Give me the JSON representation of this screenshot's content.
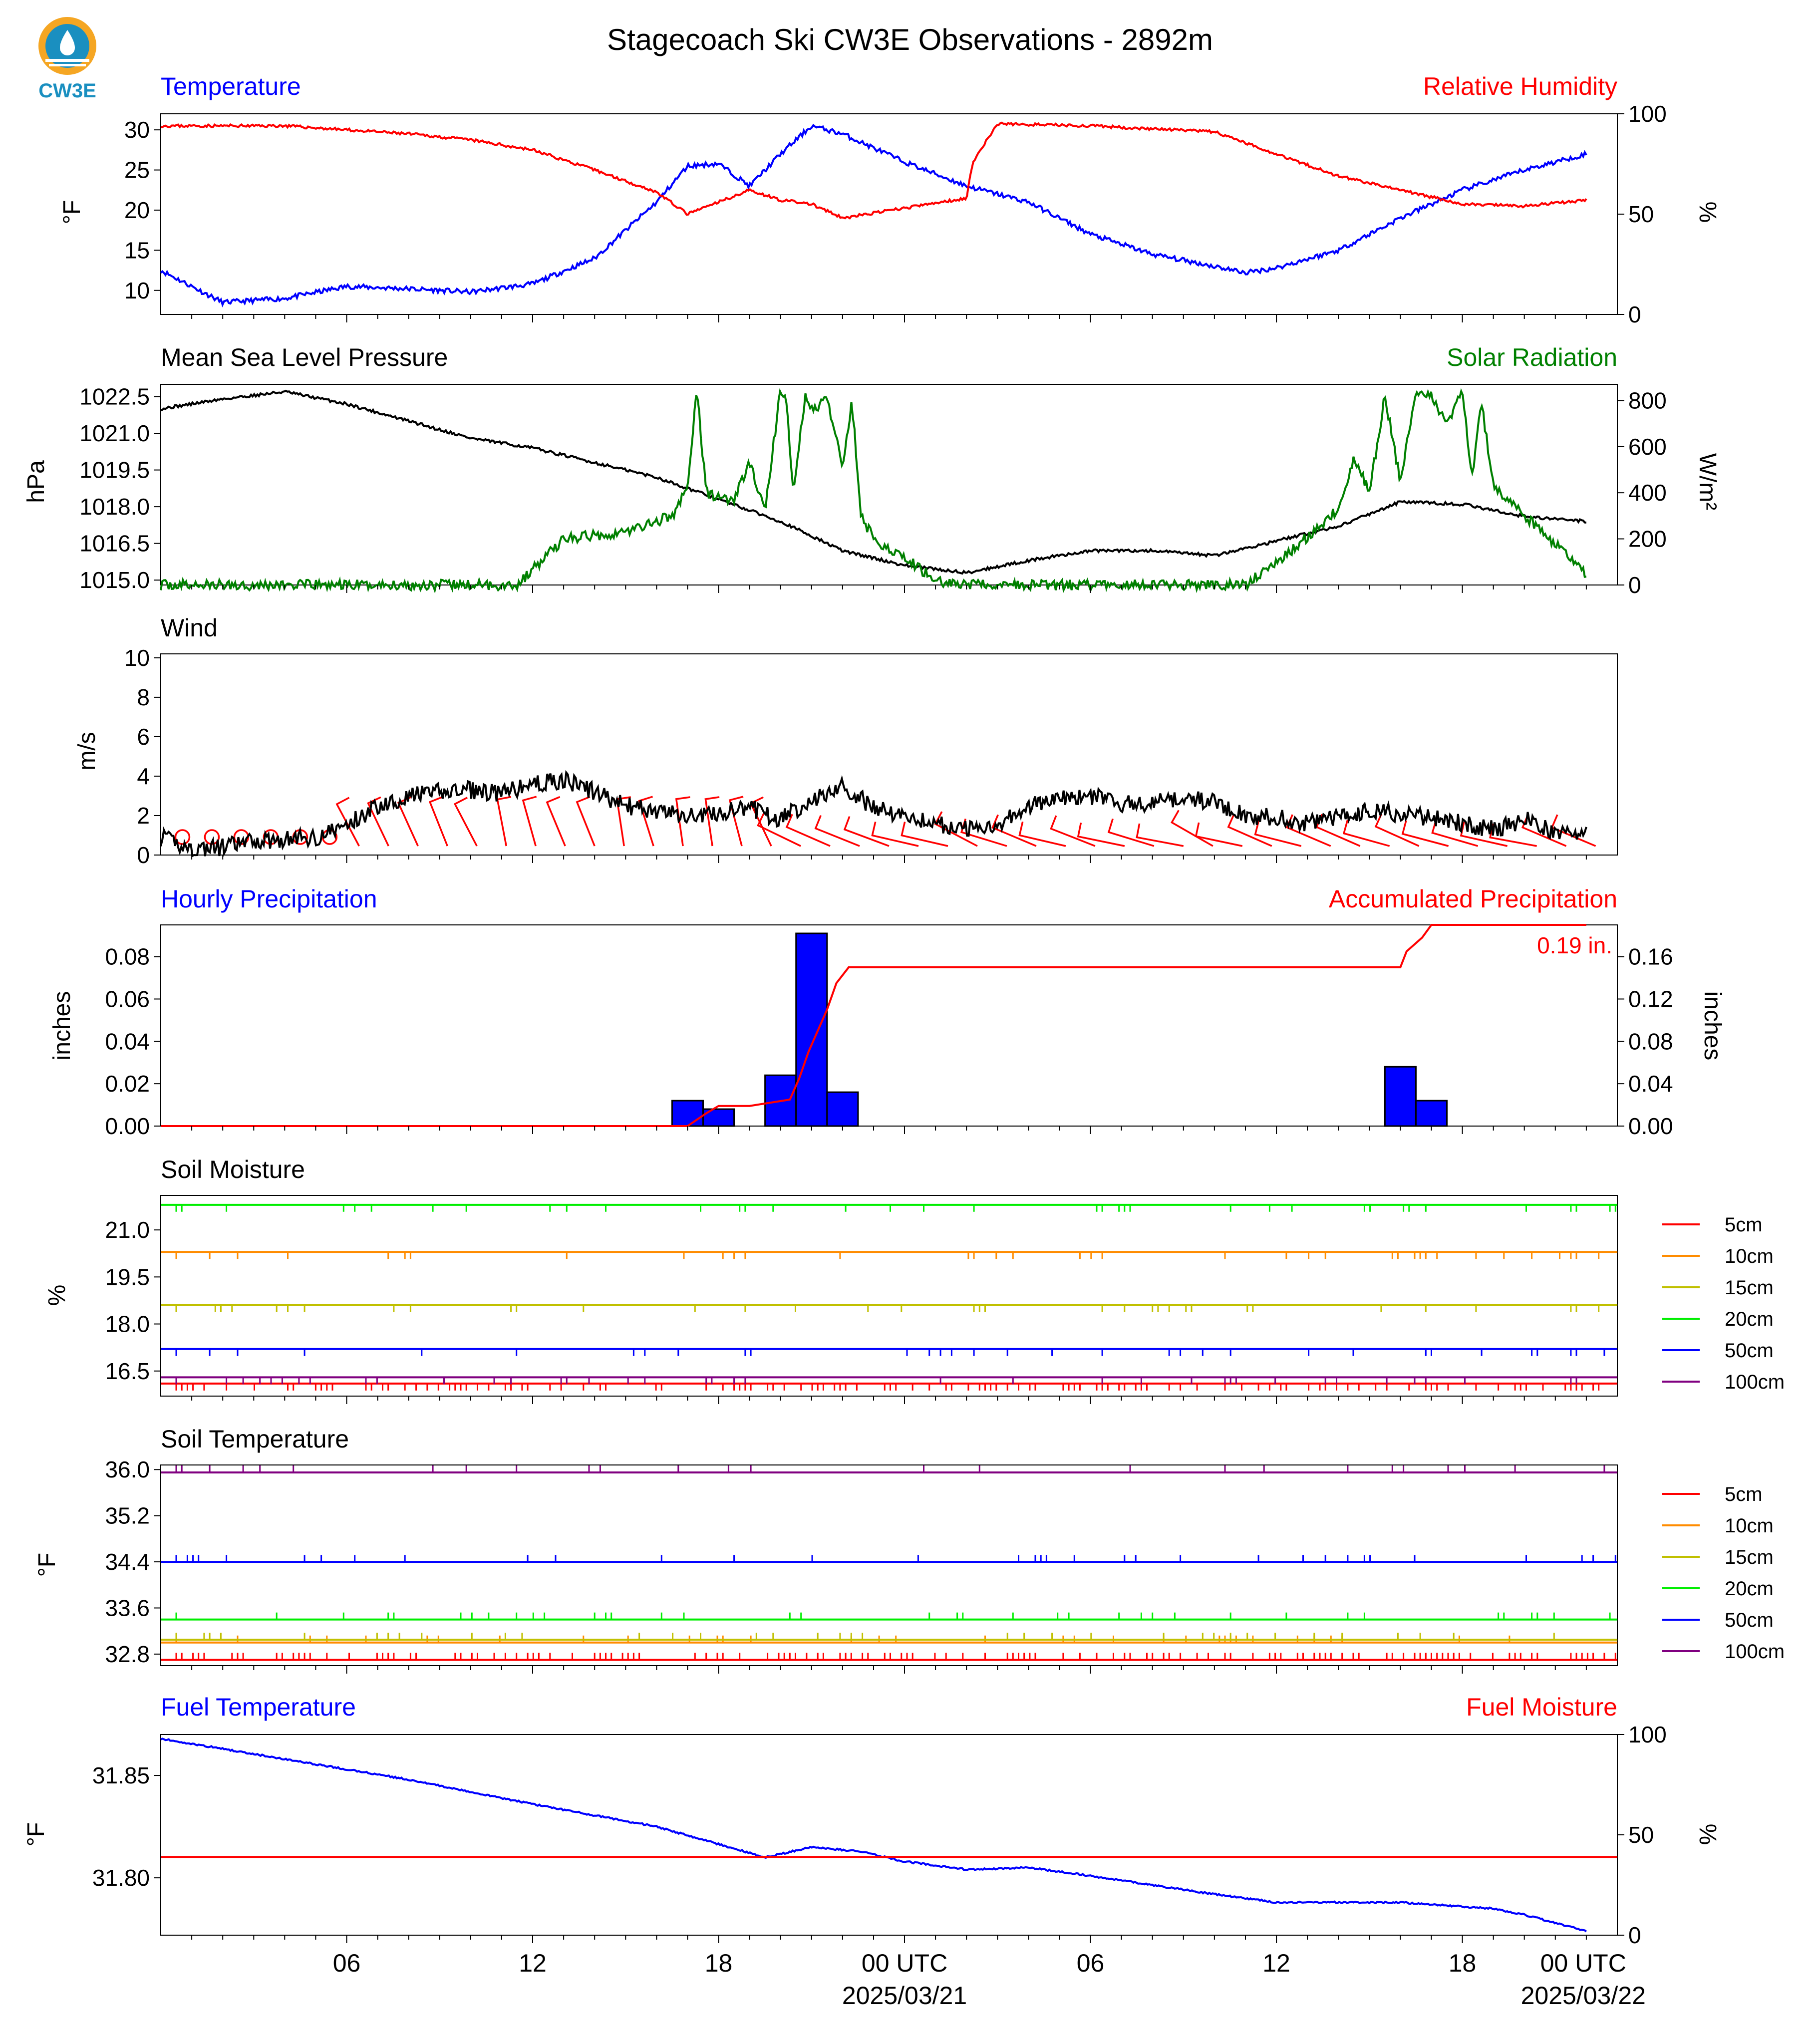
{
  "title": "Stagecoach Ski CW3E Observations - 2892m",
  "logo": {
    "text": "CW3E",
    "icon": "cw3e-water-drop-logo"
  },
  "x_axis": {
    "ticks": [
      "06",
      "12",
      "18",
      "00 UTC",
      "06",
      "12",
      "18",
      "00 UTC"
    ],
    "dates": [
      "2025/03/21",
      "2025/03/22"
    ]
  },
  "colors": {
    "blue": "#0000ff",
    "red": "#ff0000",
    "green": "#008000",
    "black": "#000000",
    "orange": "#ff8c00",
    "yellowgreen": "#c0c000",
    "lime": "#00ee00",
    "purple": "#800080"
  },
  "panels": {
    "temp_rh": {
      "left_title": "Temperature",
      "right_title": "Relative Humidity",
      "ylabel_left": "°F",
      "ylabel_right": "%",
      "yticks_left": [
        "10",
        "15",
        "20",
        "25",
        "30"
      ],
      "yticks_right": [
        "0",
        "50",
        "100"
      ]
    },
    "pressure_solar": {
      "left_title": "Mean Sea Level Pressure",
      "right_title": "Solar Radiation",
      "ylabel_left": "hPa",
      "ylabel_right": "W/m²",
      "yticks_left": [
        "1015.0",
        "1016.5",
        "1018.0",
        "1019.5",
        "1021.0",
        "1022.5"
      ],
      "yticks_right": [
        "0",
        "200",
        "400",
        "600",
        "800"
      ]
    },
    "wind": {
      "left_title": "Wind",
      "ylabel_left": "m/s",
      "yticks_left": [
        "0",
        "2",
        "4",
        "6",
        "8",
        "10"
      ]
    },
    "precip": {
      "left_title": "Hourly Precipitation",
      "right_title": "Accumulated Precipitation",
      "ylabel_left": "inches",
      "ylabel_right": "inches",
      "yticks_left": [
        "0.00",
        "0.02",
        "0.04",
        "0.06",
        "0.08"
      ],
      "yticks_right": [
        "0.00",
        "0.04",
        "0.08",
        "0.12",
        "0.16"
      ],
      "total_label": "0.19 in."
    },
    "soil_moisture": {
      "left_title": "Soil Moisture",
      "ylabel_left": "%",
      "yticks_left": [
        "16.5",
        "18.0",
        "19.5",
        "21.0"
      ],
      "legend": [
        "5cm",
        "10cm",
        "15cm",
        "20cm",
        "50cm",
        "100cm"
      ]
    },
    "soil_temp": {
      "left_title": "Soil Temperature",
      "ylabel_left": "°F",
      "yticks_left": [
        "32.8",
        "33.6",
        "34.4",
        "35.2",
        "36.0"
      ],
      "legend": [
        "5cm",
        "10cm",
        "15cm",
        "20cm",
        "50cm",
        "100cm"
      ]
    },
    "fuel": {
      "left_title": "Fuel Temperature",
      "right_title": "Fuel Moisture",
      "ylabel_left": "°F",
      "ylabel_right": "%",
      "yticks_left": [
        "31.80",
        "31.85"
      ],
      "yticks_right": [
        "0",
        "50",
        "100"
      ]
    }
  },
  "chart_data": [
    {
      "type": "line",
      "title": "Temperature",
      "x_hours": [
        0,
        2,
        4,
        6,
        8,
        10,
        12,
        14,
        16,
        17,
        18,
        19,
        20,
        21,
        22,
        24,
        26,
        28,
        30,
        32,
        34,
        35,
        36,
        38,
        40,
        42,
        44,
        46
      ],
      "series": [
        {
          "name": "Temperature",
          "unit": "°F",
          "color": "#0000ff",
          "values": [
            12.5,
            8.5,
            9,
            10.5,
            10.2,
            9.8,
            10.8,
            14,
            21,
            25.5,
            25.8,
            23,
            27,
            30.5,
            29.5,
            26,
            23,
            21,
            17,
            14.5,
            13,
            12.2,
            12.8,
            15,
            19,
            22.5,
            25,
            27
          ]
        }
      ],
      "ylim": [
        7,
        32
      ]
    },
    {
      "type": "line",
      "title": "Relative Humidity",
      "x_hours": [
        0,
        2,
        4,
        6,
        8,
        10,
        12,
        14,
        16,
        17,
        18,
        19,
        20,
        21,
        22,
        24,
        26,
        26.2,
        27,
        30,
        34,
        36,
        38,
        40,
        42,
        44,
        46
      ],
      "series": [
        {
          "name": "Relative Humidity",
          "unit": "%",
          "color": "#ff0000",
          "values": [
            94,
            94,
            94,
            92,
            90,
            87,
            82,
            72,
            61,
            50,
            56,
            62,
            57,
            55,
            48,
            53,
            58,
            76,
            95,
            94,
            91,
            80,
            69,
            62,
            55,
            54,
            57
          ]
        }
      ],
      "ylim": [
        0,
        100
      ]
    },
    {
      "type": "line",
      "title": "Mean Sea Level Pressure",
      "x_hours": [
        0,
        2,
        4,
        6,
        8,
        10,
        12,
        14,
        16,
        18,
        20,
        22,
        24,
        26,
        28,
        30,
        32,
        34,
        36,
        38,
        40,
        42,
        44,
        46
      ],
      "series": [
        {
          "name": "Mean Sea Level Pressure",
          "unit": "hPa",
          "color": "#000000",
          "values": [
            1022.0,
            1022.4,
            1022.7,
            1022.2,
            1021.5,
            1020.8,
            1020.4,
            1019.8,
            1019.2,
            1018.3,
            1017.4,
            1016.2,
            1015.6,
            1015.3,
            1015.8,
            1016.2,
            1016.2,
            1016.0,
            1016.6,
            1017.2,
            1018.2,
            1018.1,
            1017.6,
            1017.4
          ]
        }
      ],
      "ylim": [
        1014.8,
        1023.0
      ]
    },
    {
      "type": "line",
      "title": "Solar Radiation",
      "x_hours": [
        0,
        11.5,
        13,
        15,
        16.5,
        17,
        17.3,
        17.6,
        18,
        18.5,
        19,
        19.5,
        20,
        20.2,
        20.4,
        20.8,
        21,
        21.5,
        22,
        22.3,
        22.6,
        23,
        24,
        25,
        26,
        30,
        34,
        35,
        36.5,
        38,
        38.5,
        39,
        39.5,
        40,
        40.5,
        41,
        41.5,
        42,
        42.3,
        42.6,
        43,
        44,
        45,
        46
      ],
      "series": [
        {
          "name": "Solar Radiation",
          "unit": "W/m²",
          "color": "#008000",
          "values": [
            0,
            0,
            200,
            230,
            300,
            420,
            850,
            400,
            380,
            370,
            530,
            320,
            850,
            800,
            400,
            820,
            760,
            800,
            520,
            800,
            300,
            200,
            120,
            20,
            0,
            0,
            0,
            0,
            150,
            330,
            550,
            400,
            820,
            450,
            850,
            820,
            700,
            850,
            450,
            800,
            430,
            300,
            180,
            40
          ]
        }
      ],
      "ylim": [
        0,
        870
      ]
    },
    {
      "type": "line",
      "title": "Wind",
      "x_hours": [
        0,
        1,
        2,
        3,
        4,
        5,
        6,
        7,
        8,
        9,
        10,
        11,
        12,
        13,
        14,
        15,
        16,
        17,
        18,
        19,
        20,
        21,
        22,
        23,
        24,
        25,
        26,
        27,
        28,
        29,
        30,
        31,
        32,
        33,
        34,
        35,
        36,
        37,
        38,
        39,
        40,
        41,
        42,
        43,
        44,
        45,
        46
      ],
      "series": [
        {
          "name": "Wind",
          "unit": "m/s",
          "color": "#000000",
          "values": [
            0.9,
            0.3,
            0.4,
            0.7,
            0.8,
            0.9,
            1.5,
            2.5,
            3.0,
            3.2,
            3.3,
            3.1,
            3.6,
            3.8,
            3.2,
            2.5,
            2.2,
            2.0,
            2.1,
            2.4,
            1.8,
            2.8,
            3.5,
            2.4,
            2.0,
            1.6,
            1.3,
            1.6,
            2.5,
            2.8,
            3.0,
            2.6,
            2.6,
            2.9,
            2.7,
            2.0,
            1.9,
            1.6,
            1.9,
            2.3,
            2.1,
            1.9,
            1.6,
            1.3,
            1.8,
            1.2,
            1.0
          ]
        }
      ],
      "ylim": [
        0,
        10.2
      ]
    },
    {
      "type": "bar",
      "title": "Hourly Precipitation",
      "x_hours": [
        17,
        18,
        20,
        21,
        22,
        40,
        41
      ],
      "series": [
        {
          "name": "Hourly Precipitation",
          "unit": "inches",
          "color": "#0000ff",
          "values": [
            0.012,
            0.008,
            0.024,
            0.091,
            0.016,
            0.028,
            0.012
          ]
        }
      ],
      "ylim": [
        0,
        0.095
      ]
    },
    {
      "type": "line",
      "title": "Accumulated Precipitation",
      "x_hours": [
        0,
        17,
        17.6,
        18,
        19,
        20.3,
        20.6,
        20.9,
        21.2,
        21.5,
        21.8,
        22.2,
        40,
        40.2,
        40.7,
        41,
        46
      ],
      "series": [
        {
          "name": "Accumulated Precipitation",
          "unit": "inches",
          "color": "#ff0000",
          "values": [
            0,
            0,
            0.012,
            0.019,
            0.019,
            0.025,
            0.045,
            0.07,
            0.09,
            0.11,
            0.135,
            0.15,
            0.15,
            0.165,
            0.178,
            0.19,
            0.19
          ]
        }
      ],
      "ylim": [
        0,
        0.19
      ]
    },
    {
      "type": "line",
      "title": "Soil Moisture",
      "series": [
        {
          "name": "5cm",
          "color": "#ff0000",
          "values": [
            16.1
          ]
        },
        {
          "name": "10cm",
          "color": "#ff8c00",
          "values": [
            20.3
          ]
        },
        {
          "name": "15cm",
          "color": "#c0c000",
          "values": [
            18.6
          ]
        },
        {
          "name": "20cm",
          "color": "#00ee00",
          "values": [
            21.8
          ]
        },
        {
          "name": "50cm",
          "color": "#0000ff",
          "values": [
            17.2
          ]
        },
        {
          "name": "100cm",
          "color": "#800080",
          "values": [
            16.3
          ]
        }
      ],
      "ylim": [
        15.7,
        22.1
      ]
    },
    {
      "type": "line",
      "title": "Soil Temperature",
      "series": [
        {
          "name": "5cm",
          "color": "#ff0000",
          "values": [
            32.7
          ]
        },
        {
          "name": "10cm",
          "color": "#ff8c00",
          "values": [
            33.0
          ]
        },
        {
          "name": "15cm",
          "color": "#c0c000",
          "values": [
            33.05
          ]
        },
        {
          "name": "20cm",
          "color": "#00ee00",
          "values": [
            33.4
          ]
        },
        {
          "name": "50cm",
          "color": "#0000ff",
          "values": [
            34.4
          ]
        },
        {
          "name": "100cm",
          "color": "#800080",
          "values": [
            35.95
          ]
        }
      ],
      "ylim": [
        32.6,
        36.08
      ]
    },
    {
      "type": "line",
      "title": "Fuel Temperature",
      "x_hours": [
        0,
        4,
        8,
        12,
        16,
        19.5,
        21,
        22.5,
        24,
        26,
        28,
        30,
        34,
        36,
        37,
        40,
        43,
        44,
        46
      ],
      "series": [
        {
          "name": "Fuel Temperature",
          "unit": "°F",
          "color": "#0000ff",
          "values": [
            31.868,
            31.858,
            31.848,
            31.836,
            31.825,
            31.81,
            31.815,
            31.813,
            31.808,
            31.804,
            31.805,
            31.801,
            31.792,
            31.788,
            31.788,
            31.788,
            31.785,
            31.782,
            31.774
          ]
        }
      ],
      "ylim": [
        31.772,
        31.87
      ]
    },
    {
      "type": "line",
      "title": "Fuel Moisture",
      "series": [
        {
          "name": "Fuel Moisture",
          "unit": "%",
          "color": "#ff0000",
          "values": [
            39
          ]
        }
      ],
      "ylim": [
        0,
        100
      ]
    }
  ]
}
